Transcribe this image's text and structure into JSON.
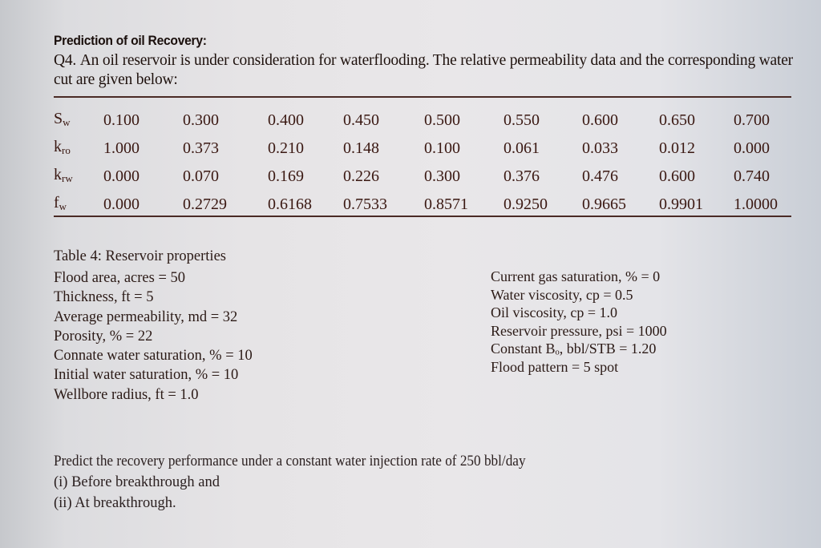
{
  "document": {
    "heading": "Prediction of oil Recovery:",
    "intro_label": "Q4.",
    "intro_text": "An oil reservoir is under consideration for waterflooding. The relative permeability data and the corresponding water cut are given below:"
  },
  "relperm_table": {
    "rows": [
      {
        "label_main": "S",
        "label_sub": "w",
        "values": [
          "0.100",
          "0.300",
          "0.400",
          "0.450",
          "0.500",
          "0.550",
          "0.600",
          "0.650",
          "0.700"
        ]
      },
      {
        "label_main": "k",
        "label_sub": "ro",
        "values": [
          "1.000",
          "0.373",
          "0.210",
          "0.148",
          "0.100",
          "0.061",
          "0.033",
          "0.012",
          "0.000"
        ]
      },
      {
        "label_main": "k",
        "label_sub": "rw",
        "values": [
          "0.000",
          "0.070",
          "0.169",
          "0.226",
          "0.300",
          "0.376",
          "0.476",
          "0.600",
          "0.740"
        ]
      },
      {
        "label_main": "f",
        "label_sub": "w",
        "values": [
          "0.000",
          "0.2729",
          "0.6168",
          "0.7533",
          "0.8571",
          "0.9250",
          "0.9665",
          "0.9901",
          "1.0000"
        ]
      }
    ]
  },
  "reservoir_properties": {
    "title": "Table 4: Reservoir properties",
    "left": [
      "Flood area, acres = 50",
      "Thickness, ft = 5",
      "Average permeability, md = 32",
      "Porosity, % = 22",
      "Connate water saturation, % = 10",
      "Initial water saturation, % = 10",
      "Wellbore radius, ft = 1.0"
    ],
    "right": [
      "Current gas saturation, % = 0",
      "Water viscosity, cp = 0.5",
      "Oil viscosity, cp = 1.0",
      "Reservoir pressure, psi = 1000",
      "Constant Bₒ, bbl/STB = 1.20",
      "Flood pattern = 5 spot"
    ]
  },
  "question": {
    "prompt": "Predict the recovery performance under a constant water injection rate of 250 bbl/day",
    "items": [
      "(i) Before breakthrough and",
      "(ii) At breakthrough."
    ]
  },
  "colors": {
    "text": "#2a1612",
    "rule": "#4a2a25",
    "background": "#e6e4e6"
  }
}
